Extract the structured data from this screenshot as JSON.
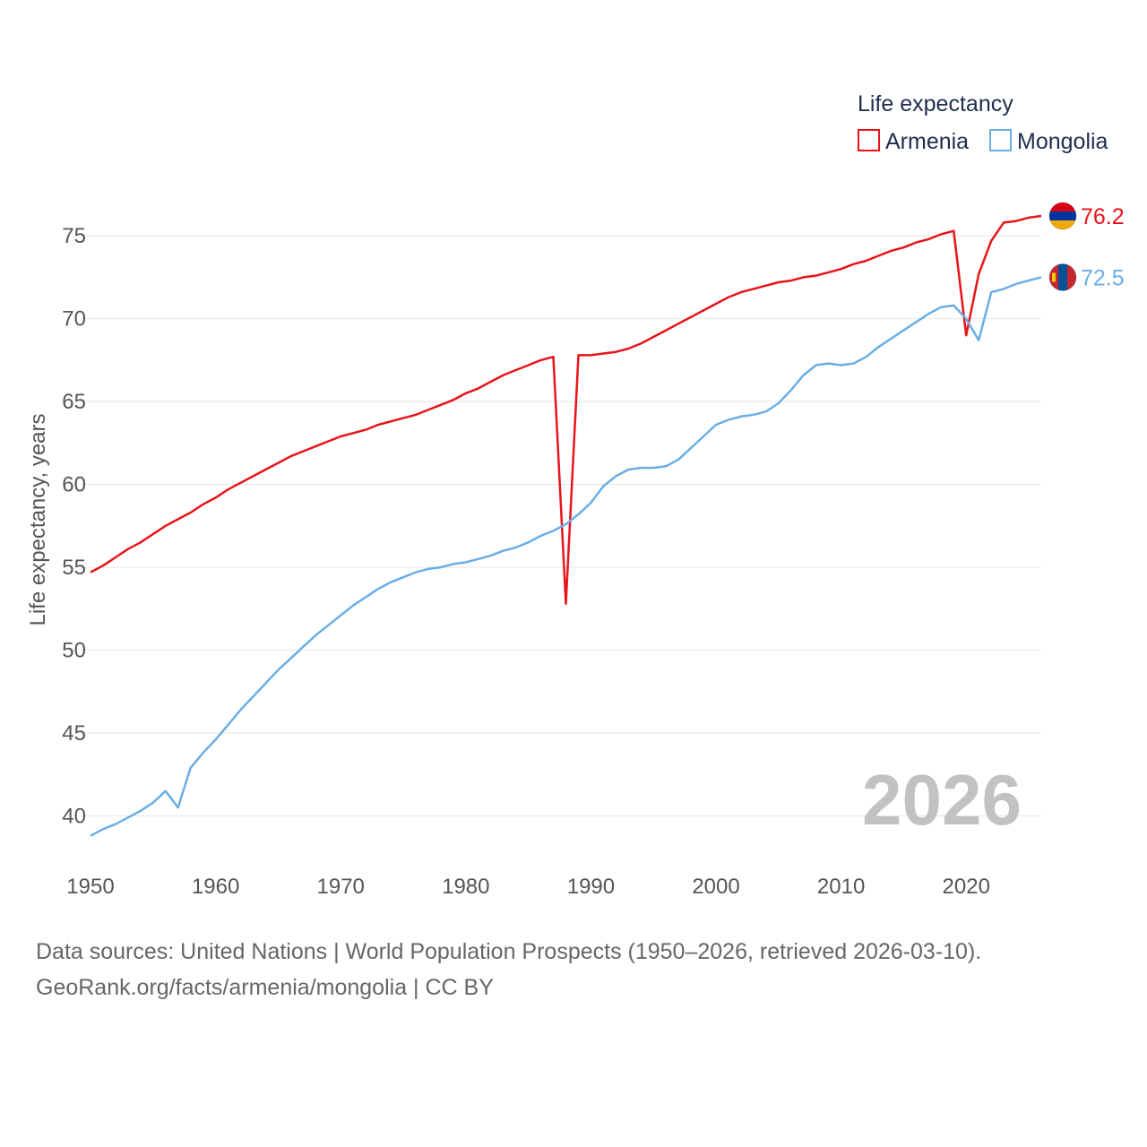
{
  "chart_data": {
    "type": "line",
    "legend_title": "Life expectancy",
    "ylabel": "Life expectancy, years",
    "xlabel": "",
    "year_label": "2026",
    "xlim": [
      1950,
      2026
    ],
    "ylim": [
      37.7,
      79.5
    ],
    "x_ticks": [
      1950,
      1960,
      1970,
      1980,
      1990,
      2000,
      2010,
      2020
    ],
    "y_ticks": [
      40,
      45,
      50,
      55,
      60,
      65,
      70,
      75
    ],
    "legend_position": "top-right",
    "x": [
      1950,
      1951,
      1952,
      1953,
      1954,
      1955,
      1956,
      1957,
      1958,
      1959,
      1960,
      1961,
      1962,
      1963,
      1964,
      1965,
      1966,
      1967,
      1968,
      1969,
      1970,
      1971,
      1972,
      1973,
      1974,
      1975,
      1976,
      1977,
      1978,
      1979,
      1980,
      1981,
      1982,
      1983,
      1984,
      1985,
      1986,
      1987,
      1988,
      1989,
      1990,
      1991,
      1992,
      1993,
      1994,
      1995,
      1996,
      1997,
      1998,
      1999,
      2000,
      2001,
      2002,
      2003,
      2004,
      2005,
      2006,
      2007,
      2008,
      2009,
      2010,
      2011,
      2012,
      2013,
      2014,
      2015,
      2016,
      2017,
      2018,
      2019,
      2020,
      2021,
      2022,
      2023,
      2024,
      2025,
      2026
    ],
    "series": [
      {
        "name": "Armenia",
        "color": "#e8141a",
        "end_label": "76.2",
        "flag": "armenia",
        "values": [
          54.7,
          55.1,
          55.6,
          56.1,
          56.5,
          57.0,
          57.5,
          57.9,
          58.3,
          58.8,
          59.2,
          59.7,
          60.1,
          60.5,
          60.9,
          61.3,
          61.7,
          62.0,
          62.3,
          62.6,
          62.9,
          63.1,
          63.3,
          63.6,
          63.8,
          64.0,
          64.2,
          64.5,
          64.8,
          65.1,
          65.5,
          65.8,
          66.2,
          66.6,
          66.9,
          67.2,
          67.5,
          67.7,
          52.8,
          67.8,
          67.8,
          67.9,
          68.0,
          68.2,
          68.5,
          68.9,
          69.3,
          69.7,
          70.1,
          70.5,
          70.9,
          71.3,
          71.6,
          71.8,
          72.0,
          72.2,
          72.3,
          72.5,
          72.6,
          72.8,
          73.0,
          73.3,
          73.5,
          73.8,
          74.1,
          74.3,
          74.6,
          74.8,
          75.1,
          75.3,
          69.0,
          72.7,
          74.7,
          75.8,
          75.9,
          76.1,
          76.2
        ]
      },
      {
        "name": "Mongolia",
        "color": "#6aaee6",
        "end_label": "72.5",
        "flag": "mongolia",
        "values": [
          38.8,
          39.2,
          39.5,
          39.9,
          40.3,
          40.8,
          41.5,
          40.5,
          42.9,
          43.8,
          44.6,
          45.5,
          46.4,
          47.2,
          48.0,
          48.8,
          49.5,
          50.2,
          50.9,
          51.5,
          52.1,
          52.7,
          53.2,
          53.7,
          54.1,
          54.4,
          54.7,
          54.9,
          55.0,
          55.2,
          55.3,
          55.5,
          55.7,
          56.0,
          56.2,
          56.5,
          56.9,
          57.2,
          57.6,
          58.2,
          58.9,
          59.9,
          60.5,
          60.9,
          61.0,
          61.0,
          61.1,
          61.5,
          62.2,
          62.9,
          63.6,
          63.9,
          64.1,
          64.2,
          64.4,
          64.9,
          65.7,
          66.6,
          67.2,
          67.3,
          67.2,
          67.3,
          67.7,
          68.3,
          68.8,
          69.3,
          69.8,
          70.3,
          70.7,
          70.8,
          70.0,
          68.7,
          71.6,
          71.8,
          72.1,
          72.3,
          72.5
        ]
      }
    ]
  },
  "source": {
    "line1": "Data sources: United Nations | World Population Prospects (1950–2026, retrieved 2026-03-10).",
    "line2": "GeoRank.org/facts/armenia/mongolia | CC BY"
  }
}
